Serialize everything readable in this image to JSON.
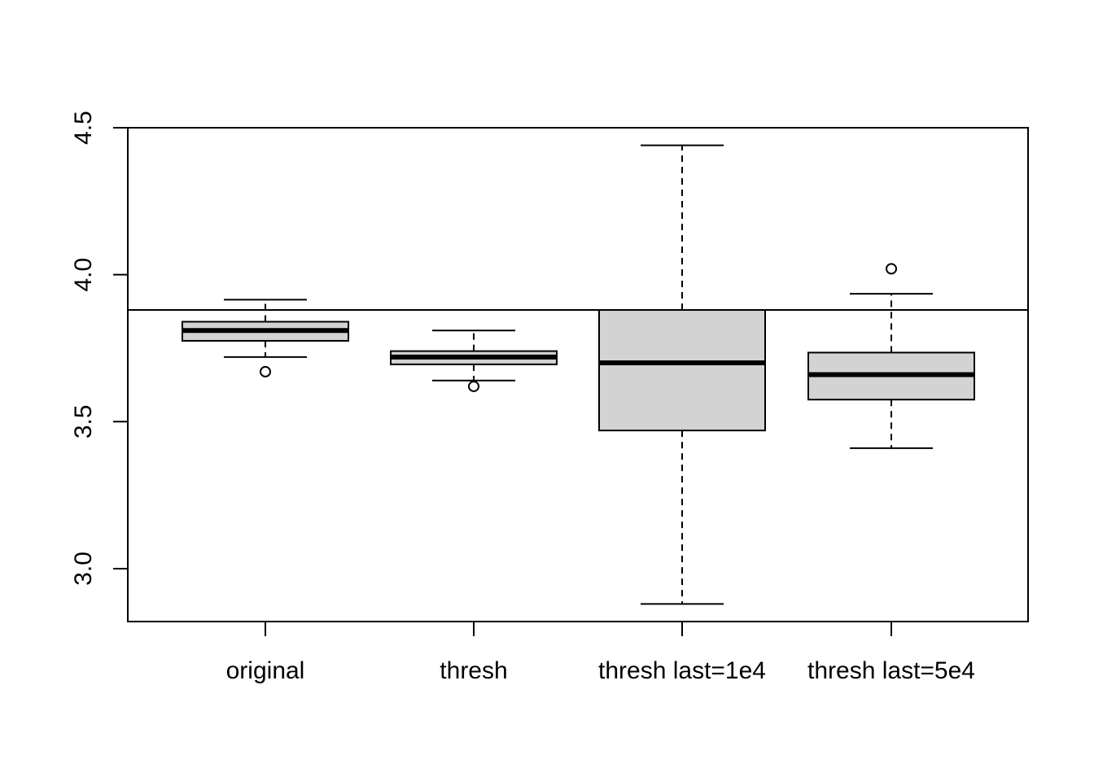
{
  "chart_data": {
    "type": "boxplot",
    "title": "",
    "xlabel": "",
    "ylabel": "",
    "ylim": [
      2.82,
      4.5
    ],
    "yticks": [
      3.0,
      3.5,
      4.0,
      4.5
    ],
    "ytick_labels": [
      "3.0",
      "3.5",
      "4.0",
      "4.5"
    ],
    "reference_line": 3.88,
    "box_fill": "#d3d3d3",
    "categories": [
      "original",
      "thresh",
      "thresh last=1e4",
      "thresh last=5e4"
    ],
    "boxes": [
      {
        "whisker_low": 3.72,
        "q1": 3.775,
        "median": 3.81,
        "q3": 3.84,
        "whisker_high": 3.915,
        "outliers": [
          3.67
        ]
      },
      {
        "whisker_low": 3.64,
        "q1": 3.695,
        "median": 3.72,
        "q3": 3.74,
        "whisker_high": 3.81,
        "outliers": [
          3.62
        ]
      },
      {
        "whisker_low": 2.88,
        "q1": 3.47,
        "median": 3.7,
        "q3": 3.88,
        "whisker_high": 4.44,
        "outliers": []
      },
      {
        "whisker_low": 3.41,
        "q1": 3.575,
        "median": 3.66,
        "q3": 3.735,
        "whisker_high": 3.935,
        "outliers": [
          4.02
        ]
      }
    ]
  }
}
